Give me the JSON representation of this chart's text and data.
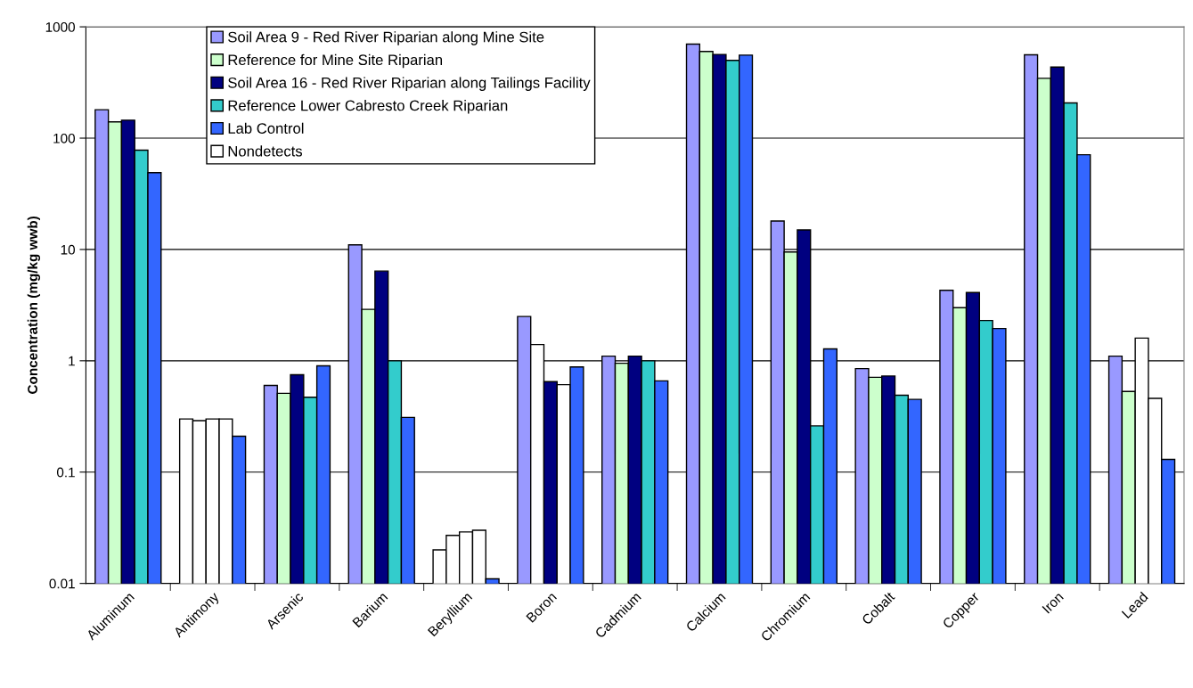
{
  "chart_data": {
    "type": "bar",
    "ylabel": "Concentration (mg/kg wwb)",
    "categories": [
      "Aluminum",
      "Antimony",
      "Arsenic",
      "Barium",
      "Beryllium",
      "Boron",
      "Cadmium",
      "Calcium",
      "Chromium",
      "Cobalt",
      "Copper",
      "Iron",
      "Lead"
    ],
    "series": [
      {
        "name": "Soil Area 9 - Red River Riparian along Mine Site",
        "color": "#9999ff",
        "values": [
          180,
          0.3,
          0.6,
          11,
          0.02,
          2.5,
          1.1,
          700,
          18,
          0.85,
          4.3,
          560,
          1.1
        ],
        "colors": [
          "#9999ff",
          "#ffffff",
          "#9999ff",
          "#9999ff",
          "#ffffff",
          "#9999ff",
          "#9999ff",
          "#9999ff",
          "#9999ff",
          "#9999ff",
          "#9999ff",
          "#9999ff",
          "#9999ff"
        ]
      },
      {
        "name": "Reference for Mine Site Riparian",
        "color": "#ccffcc",
        "values": [
          140,
          0.29,
          0.51,
          2.9,
          0.027,
          1.4,
          0.95,
          600,
          9.5,
          0.71,
          3.0,
          345,
          0.53
        ],
        "colors": [
          "#ccffcc",
          "#ffffff",
          "#ccffcc",
          "#ccffcc",
          "#ffffff",
          "#ffffff",
          "#ccffcc",
          "#ccffcc",
          "#ccffcc",
          "#ccffcc",
          "#ccffcc",
          "#ccffcc",
          "#ccffcc"
        ]
      },
      {
        "name": "Soil Area 16 - Red River Riparian along Tailings Facility",
        "color": "#000080",
        "values": [
          145,
          0.3,
          0.75,
          6.4,
          0.029,
          0.65,
          1.1,
          565,
          15,
          0.73,
          4.1,
          435,
          1.6
        ],
        "colors": [
          "#000080",
          "#ffffff",
          "#000080",
          "#000080",
          "#ffffff",
          "#000080",
          "#000080",
          "#000080",
          "#000080",
          "#000080",
          "#000080",
          "#000080",
          "#ffffff"
        ]
      },
      {
        "name": "Reference Lower Cabresto Creek Riparian",
        "color": "#33cccc",
        "values": [
          78,
          0.3,
          0.47,
          1.0,
          0.03,
          0.61,
          1.0,
          500,
          0.26,
          0.49,
          2.3,
          207,
          0.46
        ],
        "colors": [
          "#33cccc",
          "#ffffff",
          "#33cccc",
          "#33cccc",
          "#ffffff",
          "#ffffff",
          "#33cccc",
          "#33cccc",
          "#33cccc",
          "#33cccc",
          "#33cccc",
          "#33cccc",
          "#ffffff"
        ]
      },
      {
        "name": "Lab Control",
        "color": "#3366ff",
        "values": [
          49,
          0.21,
          0.9,
          0.31,
          0.011,
          0.88,
          0.66,
          557,
          1.28,
          0.45,
          1.95,
          71,
          0.13
        ]
      },
      {
        "name": "Nondetects",
        "color": "#ffffff",
        "values": [
          null,
          null,
          null,
          null,
          null,
          null,
          null,
          null,
          null,
          null,
          null,
          null,
          null
        ]
      }
    ],
    "log": "y",
    "ylim": [
      0.01,
      1000
    ],
    "yticks": [
      0.01,
      0.1,
      1,
      10,
      100,
      1000
    ],
    "grid": "y",
    "legend": "top left"
  }
}
